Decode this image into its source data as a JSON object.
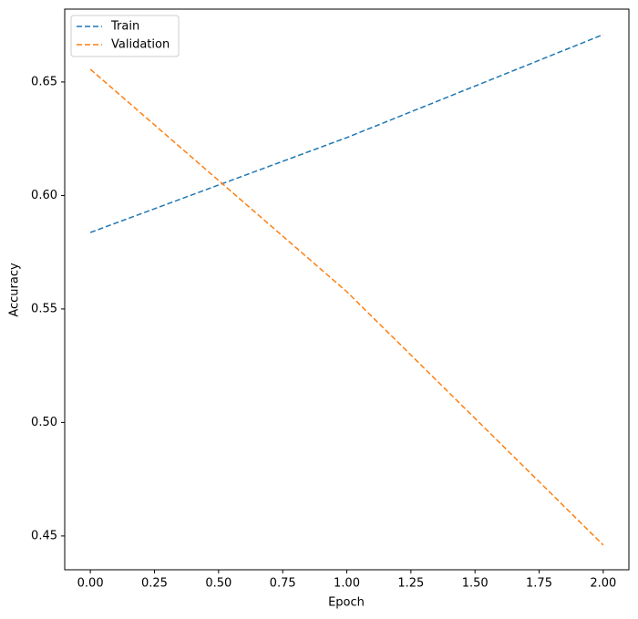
{
  "chart_data": {
    "type": "line",
    "x_label": "Epoch",
    "y_label": "Accuracy",
    "x": [
      0,
      1,
      2
    ],
    "series": [
      {
        "name": "Train",
        "color": "#1f77b4",
        "values": [
          0.5837,
          0.6255,
          0.6709
        ]
      },
      {
        "name": "Validation",
        "color": "#ff7f0e",
        "values": [
          0.6556,
          0.5576,
          0.446
        ]
      }
    ],
    "xlim": [
      -0.1,
      2.1
    ],
    "ylim": [
      0.4351,
      0.6821
    ],
    "xticks": [
      {
        "value": 0,
        "label": "0.00"
      },
      0.25,
      {
        "value": 0.5,
        "label": "0.50"
      },
      0.75,
      {
        "value": 1,
        "label": "1.00"
      },
      1.25,
      {
        "value": 1.5,
        "label": "1.50"
      },
      1.75,
      {
        "value": 2,
        "label": "2.00"
      }
    ],
    "yticks": [
      0.45,
      {
        "value": 0.5,
        "label": "0.50"
      },
      0.55,
      {
        "value": 0.6,
        "label": "0.60"
      },
      0.65
    ],
    "line_style": "dashed",
    "legend": "upper left",
    "grid": false
  }
}
